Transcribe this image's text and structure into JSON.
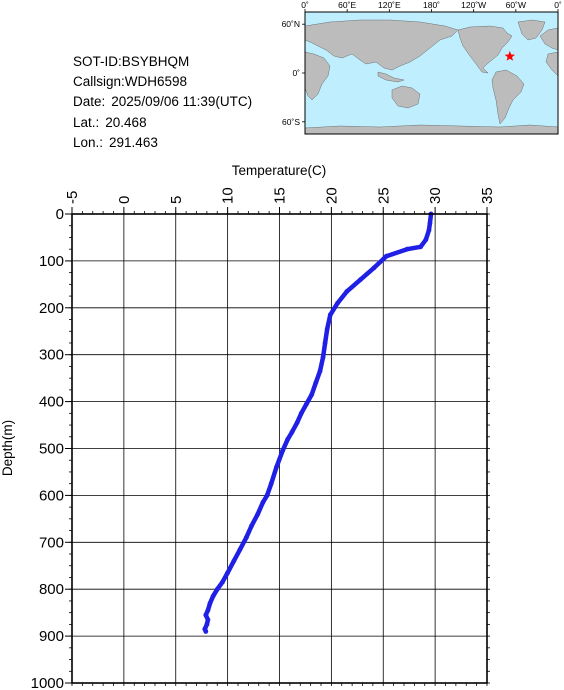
{
  "info": {
    "sot_id": "SOT-ID:BSYBHQM",
    "callsign": "Callsign:WDH6598",
    "date_label": "Date:",
    "date_value": "2025/09/06 11:39(UTC)",
    "lat_label": "Lat.:",
    "lat_value": "20.468",
    "lon_label": "Lon.:",
    "lon_value": "291.463"
  },
  "map": {
    "lon_ticks": [
      "0˚",
      "60˚E",
      "120˚E",
      "180˚",
      "120˚W",
      "60˚W",
      "0˚"
    ],
    "lat_ticks": [
      "60˚N",
      "0˚",
      "60˚S"
    ],
    "ocean_color": "#bfefff",
    "land_color": "#bcbcbc",
    "marker_color": "#ff0000",
    "marker_icon": "star-icon",
    "marker_lat": 20.468,
    "marker_lon": 291.463
  },
  "chart_data": {
    "type": "line",
    "xlabel": "Temperature(C)",
    "ylabel": "Depth(m)",
    "xlim": [
      -5,
      35
    ],
    "ylim": [
      0,
      1000
    ],
    "x_ticks": [
      "-5",
      "0",
      "5",
      "10",
      "15",
      "20",
      "25",
      "30",
      "35"
    ],
    "y_ticks": [
      "0",
      "100",
      "200",
      "300",
      "400",
      "500",
      "600",
      "700",
      "800",
      "900",
      "1000"
    ],
    "grid": true,
    "series_color": "#1f1fe6",
    "series": [
      {
        "temperature": [
          29.6,
          29.5,
          29.4,
          29.1,
          28.6,
          27.3,
          25.3,
          24.1,
          22.8,
          21.5,
          20.6,
          19.9,
          19.6,
          19.4,
          19.2,
          18.9,
          18.5,
          18.1,
          17.6,
          17.1,
          16.7,
          16.2,
          15.8,
          15.3,
          14.7,
          14.2,
          13.8,
          13.4,
          12.9,
          12.3,
          11.8,
          11.2,
          10.6,
          10.0,
          9.5,
          9.0,
          8.6,
          8.3,
          8.1,
          7.9,
          8.1,
          8.0,
          7.8,
          7.9
        ],
        "depth": [
          0,
          20,
          35,
          55,
          70,
          75,
          90,
          115,
          140,
          165,
          190,
          215,
          245,
          275,
          305,
          335,
          360,
          385,
          405,
          425,
          445,
          465,
          480,
          505,
          540,
          575,
          600,
          615,
          640,
          665,
          690,
          715,
          740,
          765,
          785,
          800,
          815,
          830,
          845,
          855,
          865,
          875,
          885,
          890
        ]
      }
    ]
  }
}
